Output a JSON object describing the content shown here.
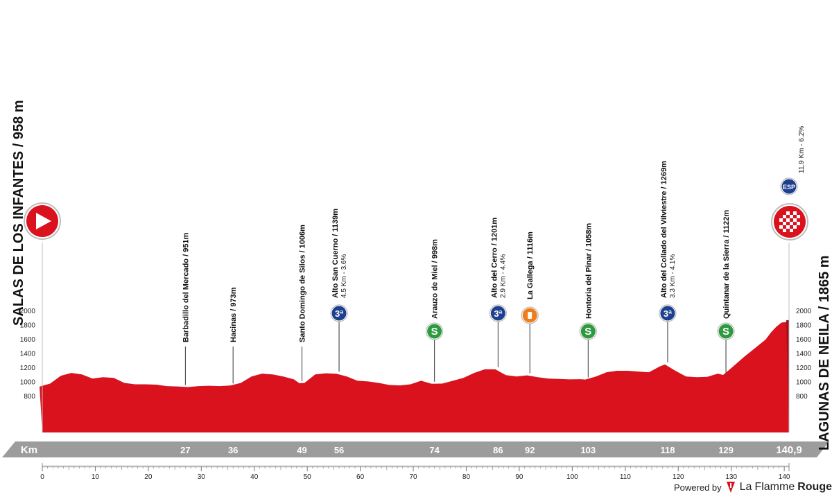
{
  "start": {
    "label": "SALAS DE LOS INFANTES / 958 m"
  },
  "finish": {
    "label": "LAGUNAS DE NEILA / 1865 m",
    "badge_text": "ESP",
    "climb_info": "11.9 Km - 6.2%"
  },
  "colors": {
    "profile_red": "#d9121e",
    "profile_dark": "#a10f18",
    "bar_gray": "#9c9c9c",
    "green_sprint": "#2e9a3f",
    "blue_climb": "#1d3f8f",
    "orange_feed": "#f07d1a"
  },
  "km_bar": {
    "label": "Km",
    "total": "140,9",
    "waypoint_kms": [
      "27",
      "36",
      "49",
      "56",
      "74",
      "86",
      "92",
      "103",
      "118",
      "129"
    ]
  },
  "chart_data": {
    "type": "area",
    "title": "",
    "xlabel": "Km",
    "ylabel": "",
    "xlim": [
      0,
      140.9
    ],
    "ylim": [
      700,
      2000
    ],
    "x_ticks": [
      "0",
      "10",
      "20",
      "30",
      "40",
      "50",
      "60",
      "70",
      "80",
      "90",
      "100",
      "110",
      "120",
      "130",
      "140"
    ],
    "y_ticks": [
      "800",
      "1000",
      "1200",
      "1400",
      "1600",
      "1800",
      "2000"
    ],
    "x": [
      0,
      2,
      4,
      6,
      8,
      10,
      12,
      14,
      16,
      18,
      20,
      22,
      24,
      26,
      28,
      30,
      32,
      34,
      36,
      38,
      40,
      42,
      44,
      46,
      48,
      49,
      50,
      52,
      54,
      56,
      58,
      60,
      62,
      64,
      66,
      68,
      70,
      72,
      74,
      76,
      78,
      80,
      82,
      84,
      86,
      88,
      90,
      92,
      94,
      96,
      98,
      100,
      102,
      103,
      105,
      107,
      109,
      111,
      113,
      115,
      117,
      118,
      120,
      122,
      124,
      126,
      128,
      129,
      131,
      133,
      135,
      137,
      138,
      139,
      140,
      140.9
    ],
    "values": [
      958,
      1000,
      1110,
      1150,
      1130,
      1070,
      1090,
      1080,
      1010,
      990,
      990,
      985,
      965,
      960,
      951,
      965,
      970,
      965,
      973,
      1010,
      1100,
      1140,
      1130,
      1100,
      1060,
      1006,
      1010,
      1130,
      1145,
      1139,
      1100,
      1040,
      1030,
      1010,
      980,
      975,
      990,
      1040,
      998,
      1000,
      1040,
      1080,
      1150,
      1201,
      1201,
      1120,
      1100,
      1116,
      1090,
      1070,
      1065,
      1060,
      1062,
      1058,
      1100,
      1160,
      1180,
      1180,
      1170,
      1160,
      1240,
      1269,
      1180,
      1100,
      1090,
      1095,
      1140,
      1122,
      1250,
      1380,
      1500,
      1620,
      1720,
      1800,
      1860,
      1865
    ],
    "waypoints": [
      {
        "km": 27,
        "name": "Barbadillo del Mercado / 951m",
        "altitude": 951,
        "type": "town"
      },
      {
        "km": 36,
        "name": "Hacinas / 973m",
        "altitude": 973,
        "type": "town"
      },
      {
        "km": 49,
        "name": "Santo Domingo de Silos / 1006m",
        "altitude": 1006,
        "type": "town"
      },
      {
        "km": 56,
        "name": "Alto San Cuerno / 1139m",
        "detail": "4.5 Km - 3.6%",
        "altitude": 1139,
        "type": "climb",
        "badge": "3ª"
      },
      {
        "km": 74,
        "name": "Arauzo de Miel / 998m",
        "altitude": 998,
        "type": "sprint",
        "badge": "S"
      },
      {
        "km": 86,
        "name": "Alto del Cerro / 1201m",
        "detail": "2.9 Km - 4.4%",
        "altitude": 1201,
        "type": "climb",
        "badge": "3ª"
      },
      {
        "km": 92,
        "name": "La Gallega / 1116m",
        "altitude": 1116,
        "type": "feed"
      },
      {
        "km": 103,
        "name": "Hontoria del Pinar / 1058m",
        "altitude": 1058,
        "type": "sprint",
        "badge": "S"
      },
      {
        "km": 118,
        "name": "Alto del Collado del Vilviestre / 1269m",
        "detail": "3.3 Km - 4.1%",
        "altitude": 1269,
        "type": "climb",
        "badge": "3ª"
      },
      {
        "km": 129,
        "name": "Quintanar de la Sierra / 1122m",
        "altitude": 1122,
        "type": "sprint",
        "badge": "S"
      }
    ]
  },
  "footer": {
    "powered_by": "Powered by",
    "brand_la": "La",
    "brand_flamme": "Flamme",
    "brand_rouge": "Rouge"
  }
}
